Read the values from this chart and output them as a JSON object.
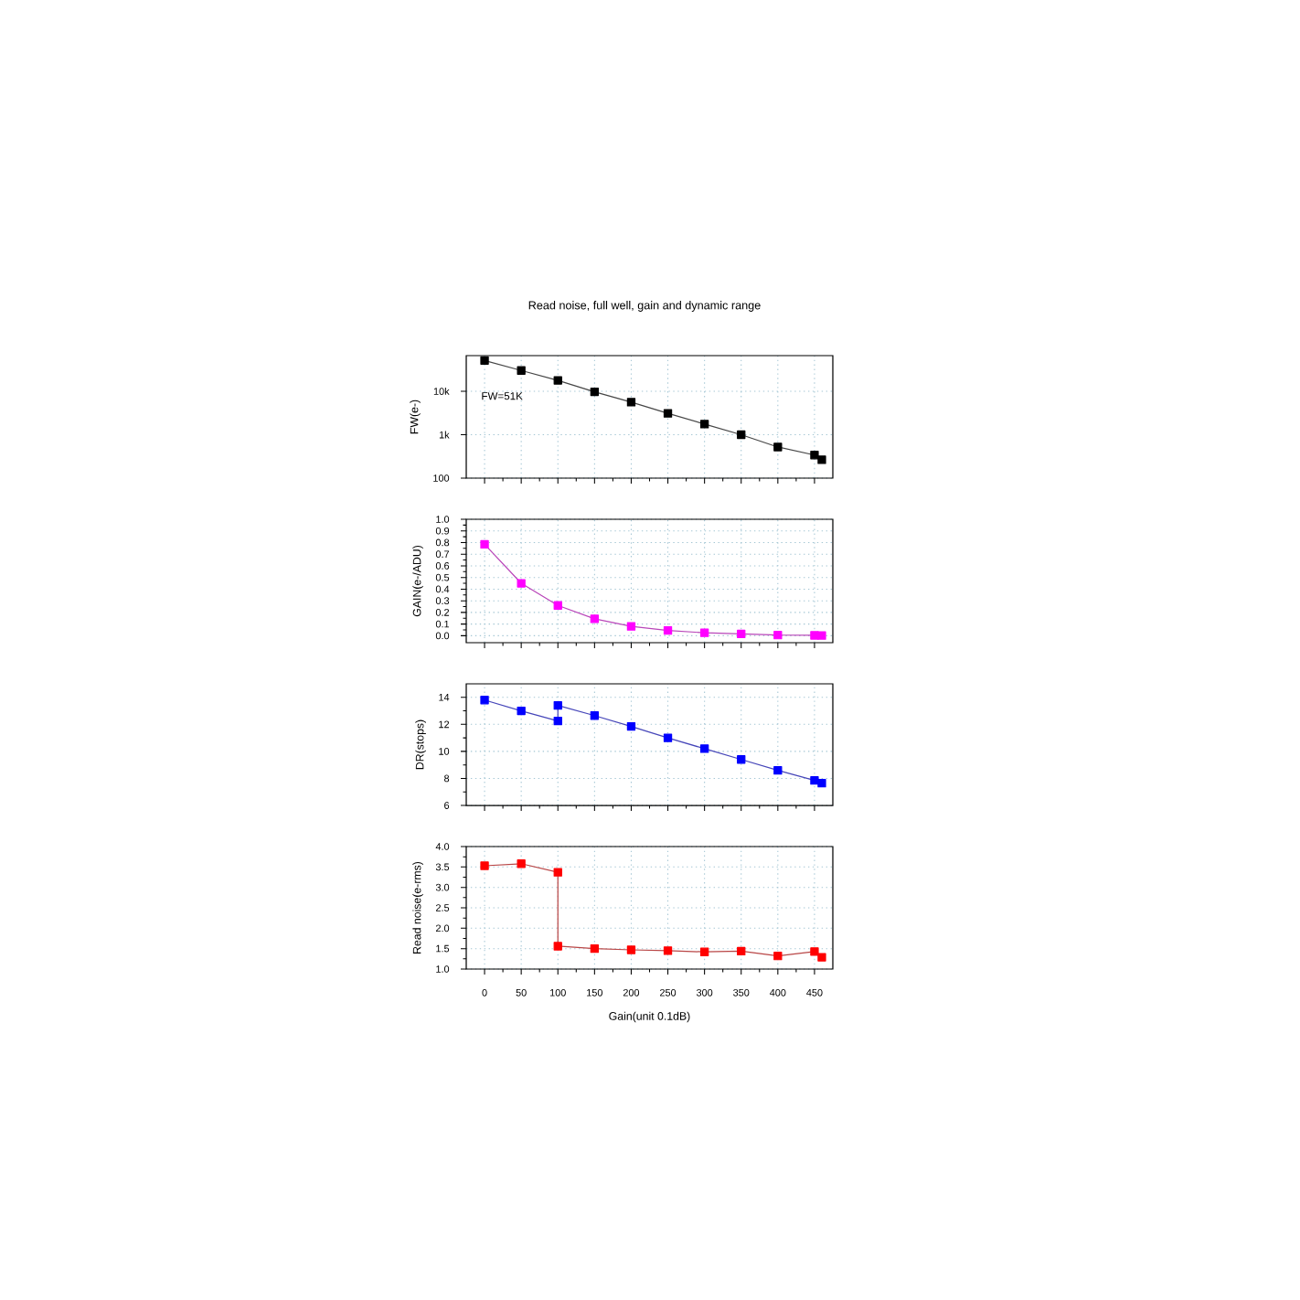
{
  "chart_data": [
    {
      "type": "line",
      "title": "Read noise, full well, gain and dynamic range",
      "ylabel": "FW(e-)",
      "log": true,
      "grid": true,
      "marker": "square",
      "tick_labels": "y",
      "x": [
        0,
        50,
        100,
        150,
        200,
        250,
        300,
        350,
        400,
        450,
        460
      ],
      "series": [
        {
          "color": "#000000",
          "values": [
            51000,
            30000,
            17800,
            9700,
            5600,
            3100,
            1750,
            1000,
            520,
            340,
            265
          ]
        }
      ],
      "xlim": [
        -25,
        475
      ],
      "xticks": [
        0,
        50,
        100,
        150,
        200,
        250,
        300,
        350,
        400,
        450
      ],
      "ylim": [
        100,
        66000
      ],
      "yticks": [
        {
          "value": 100,
          "label": "100"
        },
        {
          "value": 1000,
          "label": "1k"
        },
        {
          "value": 10000,
          "label": "10k"
        }
      ],
      "annotations": [
        "FW=51K"
      ]
    },
    {
      "type": "line",
      "ylabel": "GAIN(e-/ADU)",
      "grid": true,
      "marker": "square",
      "tick_labels": "y",
      "x": [
        0,
        50,
        100,
        150,
        200,
        250,
        300,
        350,
        400,
        450,
        460
      ],
      "series": [
        {
          "color": "#ff00ff",
          "values": [
            0.785,
            0.45,
            0.26,
            0.145,
            0.08,
            0.045,
            0.025,
            0.015,
            0.005,
            0.003,
            0.002
          ]
        }
      ],
      "xlim": [
        -25,
        475
      ],
      "xticks": [
        0,
        50,
        100,
        150,
        200,
        250,
        300,
        350,
        400,
        450
      ],
      "ylim": [
        -0.06,
        1.0
      ],
      "yticks": [
        {
          "value": 0,
          "label": "0.0"
        },
        {
          "value": 0.1,
          "label": "0.1"
        },
        {
          "value": 0.2,
          "label": "0.2"
        },
        {
          "value": 0.3,
          "label": "0.3"
        },
        {
          "value": 0.4,
          "label": "0.4"
        },
        {
          "value": 0.5,
          "label": "0.5"
        },
        {
          "value": 0.6,
          "label": "0.6"
        },
        {
          "value": 0.7,
          "label": "0.7"
        },
        {
          "value": 0.8,
          "label": "0.8"
        },
        {
          "value": 0.9,
          "label": "0.9"
        },
        {
          "value": 1.0,
          "label": "1.0"
        }
      ]
    },
    {
      "type": "line",
      "ylabel": "DR(stops)",
      "grid": true,
      "marker": "square",
      "tick_labels": "y",
      "x": [
        0,
        50,
        100,
        100,
        150,
        200,
        250,
        300,
        350,
        400,
        450,
        460
      ],
      "series": [
        {
          "color": "#0000ff",
          "values": [
            13.8,
            13.0,
            12.25,
            13.4,
            12.65,
            11.85,
            11.0,
            10.2,
            9.4,
            8.6,
            7.85,
            7.65
          ]
        }
      ],
      "xlim": [
        -25,
        475
      ],
      "xticks": [
        0,
        50,
        100,
        150,
        200,
        250,
        300,
        350,
        400,
        450
      ],
      "ylim": [
        6,
        15
      ],
      "yticks": [
        6,
        8,
        10,
        12,
        14
      ]
    },
    {
      "type": "line",
      "xlabel": "Gain(unit 0.1dB)",
      "ylabel": "Read noise(e-rms)",
      "grid": true,
      "marker": "square",
      "x": [
        0,
        50,
        100,
        100,
        150,
        200,
        250,
        300,
        350,
        400,
        450,
        460
      ],
      "series": [
        {
          "color": "#ff0000",
          "values": [
            3.53,
            3.58,
            3.37,
            1.56,
            1.5,
            1.47,
            1.45,
            1.42,
            1.44,
            1.32,
            1.43,
            1.29
          ]
        }
      ],
      "xlim": [
        -25,
        475
      ],
      "xticks": [
        0,
        50,
        100,
        150,
        200,
        250,
        300,
        350,
        400,
        450
      ],
      "ylim": [
        1.0,
        4.0
      ],
      "yticks": [
        {
          "value": 1.0,
          "label": "1.0"
        },
        {
          "value": 1.5,
          "label": "1.5"
        },
        {
          "value": 2.0,
          "label": "2.0"
        },
        {
          "value": 2.5,
          "label": "2.5"
        },
        {
          "value": 3.0,
          "label": "3.0"
        },
        {
          "value": 3.5,
          "label": "3.5"
        },
        {
          "value": 4.0,
          "label": "4.0"
        }
      ]
    }
  ]
}
